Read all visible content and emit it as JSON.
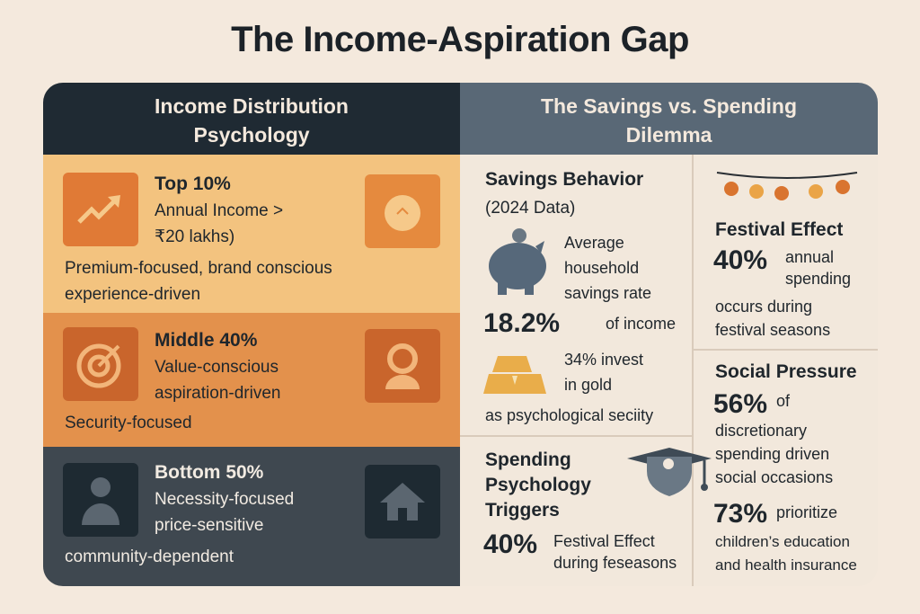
{
  "title": "The Income-Aspiration Gap",
  "left": {
    "header_line1": "Income Distribution",
    "header_line2": "Psychology",
    "top": {
      "title": "Top 10%",
      "line1": "Annual Income >",
      "line2": "₹20 lakhs)",
      "desc1": "Premium-focused, brand conscious",
      "desc2": "experience-driven",
      "icon_left": "trending-up-icon",
      "icon_right": "money-bag-icon"
    },
    "middle": {
      "title": "Middle 40%",
      "line1": "Value-conscious",
      "line2": "aspiration-driven",
      "desc1": "Security-focused",
      "icon_left": "target-icon",
      "icon_right": "person-icon"
    },
    "bottom": {
      "title": "Bottom 50%",
      "line1": "Necessity-focused",
      "line2": "price-sensitive",
      "desc1": "community-dependent",
      "icon_left": "user-icon",
      "icon_right": "home-icon"
    }
  },
  "right": {
    "header_line1": "The Savings vs. Spending",
    "header_line2": "Dilemma",
    "savings": {
      "title": "Savings Behavior",
      "subtitle": "(2024 Data)",
      "l1": "Average",
      "l2": "household",
      "l3": "savings rate",
      "stat": "18.2%",
      "stat_text": "of income",
      "gold1": "34% invest",
      "gold2": "in gold",
      "gold3": "as psychological seciity"
    },
    "triggers": {
      "t1": "Spending",
      "t2": "Psychology",
      "t3": "Triggers",
      "stat": "40%",
      "s1": "Festival Effect",
      "s2": "during feseasons"
    },
    "festival": {
      "title": "Festival Effect",
      "stat": "40%",
      "s1": "annual",
      "s2": "spending",
      "s3": "occurs during",
      "s4": "festival seasons"
    },
    "social": {
      "title": "Social Pressure",
      "stat": "56%",
      "s0": "of",
      "s1": "discretionary",
      "s2": "spending driven",
      "s3": "social occasions",
      "stat2": "73%",
      "p0": "prioritize",
      "p1": "children’s education",
      "p2": "and health insurance"
    }
  },
  "colors": {
    "dark": "#1f2a33",
    "slate": "#596876",
    "light_orange": "#f3c37f",
    "orange": "#e3914c",
    "charcoal": "#3f4850",
    "cream": "#f2e8dc"
  }
}
